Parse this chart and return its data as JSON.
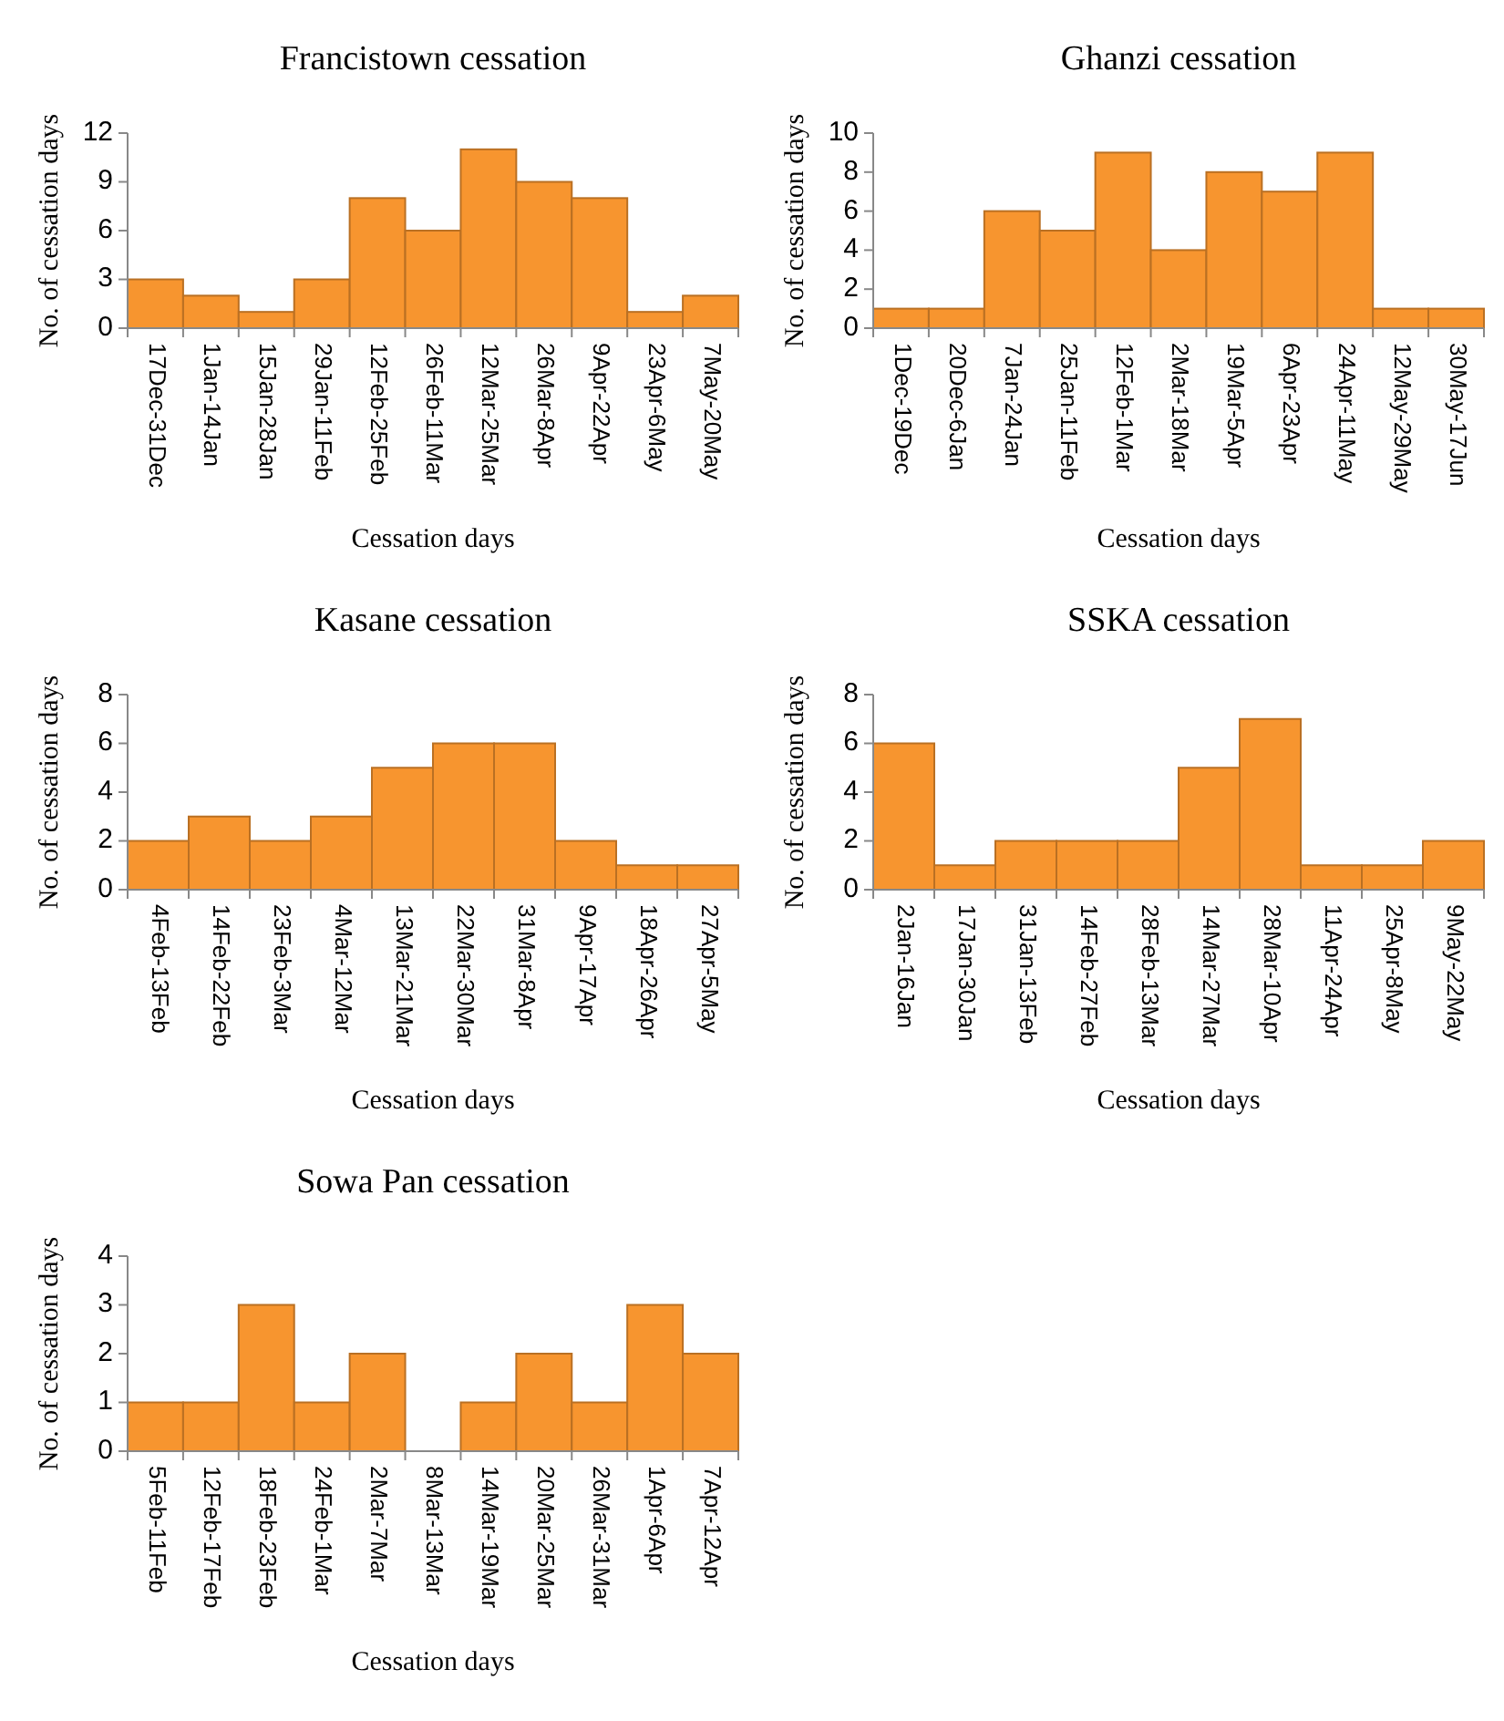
{
  "chart_data": [
    {
      "type": "bar",
      "title": "Francistown cessation",
      "xlabel": "Cessation days",
      "ylabel": "No. of cessation days",
      "categories": [
        "17Dec-31Dec",
        "1Jan-14Jan",
        "15Jan-28Jan",
        "29Jan-11Feb",
        "12Feb-25Feb",
        "26Feb-11Mar",
        "12Mar-25Mar",
        "26Mar-8Apr",
        "9Apr-22Apr",
        "23Apr-6May",
        "7May-20May"
      ],
      "values": [
        3,
        2,
        1,
        3,
        8,
        6,
        11,
        9,
        8,
        1,
        2
      ],
      "color": "#f7952f",
      "ylim": [
        0,
        12
      ],
      "yticks": [
        0,
        3,
        6,
        9,
        12
      ]
    },
    {
      "type": "bar",
      "title": "Ghanzi cessation",
      "xlabel": "Cessation days",
      "ylabel": "No. of cessation days",
      "categories": [
        "1Dec-19Dec",
        "20Dec-6Jan",
        "7Jan-24Jan",
        "25Jan-11Feb",
        "12Feb-1Mar",
        "2Mar-18Mar",
        "19Mar-5Apr",
        "6Apr-23Apr",
        "24Apr-11May",
        "12May-29May",
        "30May-17Jun"
      ],
      "values": [
        1,
        1,
        6,
        5,
        9,
        4,
        8,
        7,
        9,
        1,
        1
      ],
      "color": "#f7952f",
      "ylim": [
        0,
        10
      ],
      "yticks": [
        0,
        2,
        4,
        6,
        8,
        10
      ]
    },
    {
      "type": "bar",
      "title": "Kasane cessation",
      "xlabel": "Cessation days",
      "ylabel": "No. of cessation days",
      "categories": [
        "4Feb-13Feb",
        "14Feb-22Feb",
        "23Feb-3Mar",
        "4Mar-12Mar",
        "13Mar-21Mar",
        "22Mar-30Mar",
        "31Mar-8Apr",
        "9Apr-17Apr",
        "18Apr-26Apr",
        "27Apr-5May"
      ],
      "values": [
        2,
        3,
        2,
        3,
        5,
        6,
        6,
        2,
        1,
        1
      ],
      "color": "#f7952f",
      "ylim": [
        0,
        8
      ],
      "yticks": [
        0,
        2,
        4,
        6,
        8
      ]
    },
    {
      "type": "bar",
      "title": "SSKA cessation",
      "xlabel": "Cessation days",
      "ylabel": "No. of cessation days",
      "categories": [
        "2Jan-16Jan",
        "17Jan-30Jan",
        "31Jan-13Feb",
        "14Feb-27Feb",
        "28Feb-13Mar",
        "14Mar-27Mar",
        "28Mar-10Apr",
        "11Apr-24Apr",
        "25Apr-8May",
        "9May-22May"
      ],
      "values": [
        6,
        1,
        2,
        2,
        2,
        5,
        7,
        1,
        1,
        2
      ],
      "color": "#f7952f",
      "ylim": [
        0,
        8
      ],
      "yticks": [
        0,
        2,
        4,
        6,
        8
      ]
    },
    {
      "type": "bar",
      "title": "Sowa Pan cessation",
      "xlabel": "Cessation days",
      "ylabel": "No. of cessation days",
      "categories": [
        "5Feb-11Feb",
        "12Feb-17Feb",
        "18Feb-23Feb",
        "24Feb-1Mar",
        "2Mar-7Mar",
        "8Mar-13Mar",
        "14Mar-19Mar",
        "20Mar-25Mar",
        "26Mar-31Mar",
        "1Apr-6Apr",
        "7Apr-12Apr"
      ],
      "values": [
        1,
        1,
        3,
        1,
        2,
        0,
        1,
        2,
        1,
        3,
        2
      ],
      "color": "#f7952f",
      "ylim": [
        0,
        4
      ],
      "yticks": [
        0,
        1,
        2,
        3,
        4
      ]
    }
  ]
}
